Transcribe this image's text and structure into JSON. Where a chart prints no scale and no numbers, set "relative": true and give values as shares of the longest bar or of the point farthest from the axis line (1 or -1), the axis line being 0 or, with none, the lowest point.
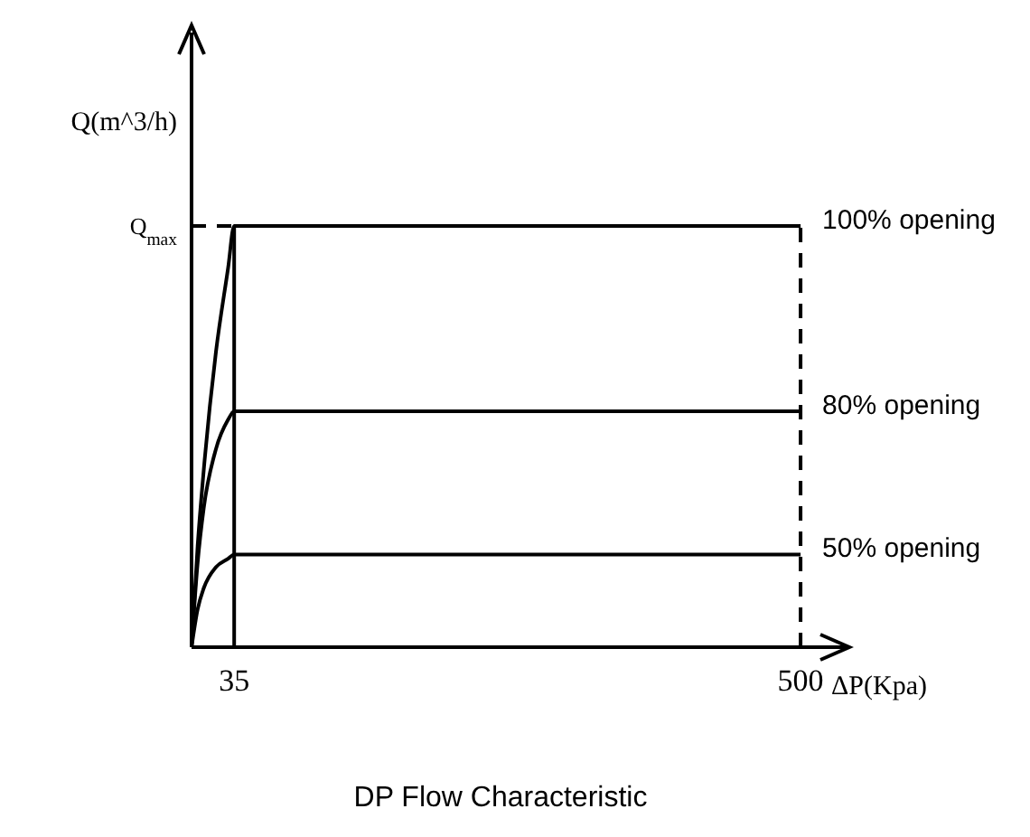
{
  "chart_data": {
    "type": "line",
    "title": "DP Flow Characteristic",
    "xlabel": "ΔP(Kpa)",
    "ylabel": "Q(m^3/h)",
    "relative": true,
    "xlim": [
      0,
      540
    ],
    "xticks": [
      35,
      500
    ],
    "series": [
      {
        "name": "100% opening",
        "color": "#000000",
        "x": [
          0,
          5,
          10,
          20,
          30,
          35,
          500
        ],
        "values": [
          0,
          0.24,
          0.42,
          0.7,
          0.9,
          1,
          1
        ]
      },
      {
        "name": "80% opening",
        "color": "#000000",
        "x": [
          0,
          5,
          10,
          20,
          30,
          35,
          500
        ],
        "values": [
          0,
          0.2,
          0.33,
          0.47,
          0.54,
          0.56,
          0.56
        ]
      },
      {
        "name": "50% opening",
        "color": "#000000",
        "x": [
          0,
          5,
          10,
          20,
          30,
          35,
          500
        ],
        "values": [
          0,
          0.09,
          0.14,
          0.19,
          0.21,
          0.22,
          0.22
        ]
      }
    ],
    "ref_lines": [
      {
        "axis": "y",
        "value": 1,
        "label": "Q$_{max}$",
        "line_style": "dashed",
        "color": "#000000"
      },
      {
        "axis": "x",
        "value": 35,
        "line_style": "solid",
        "color": "#000000"
      },
      {
        "axis": "x",
        "value": 500,
        "line_style": "dashed",
        "color": "#000000"
      }
    ],
    "line_style": "solid",
    "marker": "none",
    "grid": false
  }
}
